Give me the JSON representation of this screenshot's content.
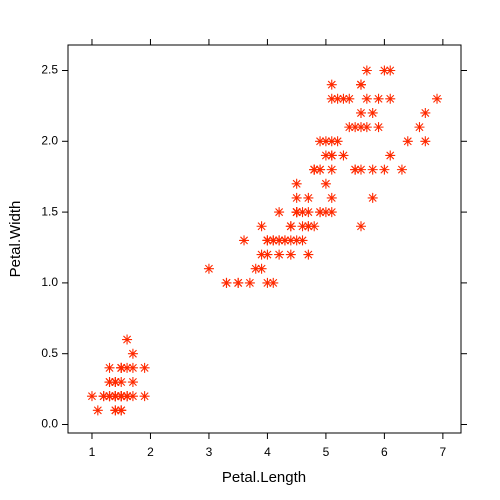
{
  "chart_data": {
    "type": "scatter",
    "xlabel": "Petal.Length",
    "ylabel": "Petal.Width",
    "marker": "asterisk",
    "color": "#ff2a00",
    "xlim": [
      0.59,
      7.31
    ],
    "ylim": [
      -0.06,
      2.68
    ],
    "xticks": [
      1,
      2,
      3,
      4,
      5,
      6,
      7
    ],
    "yticks": [
      {
        "value": 0,
        "label": "0.0"
      },
      {
        "value": 0.5,
        "label": "0.5"
      },
      {
        "value": 1,
        "label": "1.0"
      },
      {
        "value": 1.5,
        "label": "1.5"
      },
      {
        "value": 2,
        "label": "2.0"
      },
      {
        "value": 2.5,
        "label": "2.5"
      }
    ],
    "x": [
      1.4,
      1.4,
      1.3,
      1.5,
      1.4,
      1.7,
      1.4,
      1.5,
      1.4,
      1.5,
      1.5,
      1.6,
      1.4,
      1.1,
      1.2,
      1.5,
      1.3,
      1.4,
      1.7,
      1.5,
      1.7,
      1.5,
      1.0,
      1.7,
      1.9,
      1.6,
      1.6,
      1.5,
      1.4,
      1.6,
      1.6,
      1.5,
      1.5,
      1.4,
      1.5,
      1.2,
      1.3,
      1.4,
      1.3,
      1.5,
      1.3,
      1.3,
      1.3,
      1.6,
      1.9,
      1.4,
      1.6,
      1.4,
      1.5,
      1.4,
      4.7,
      4.5,
      4.9,
      4.0,
      4.6,
      4.5,
      4.7,
      3.3,
      4.6,
      3.9,
      3.5,
      4.2,
      4.0,
      4.7,
      3.6,
      4.4,
      4.5,
      4.1,
      4.5,
      3.9,
      4.8,
      4.0,
      4.9,
      4.7,
      4.3,
      4.4,
      4.8,
      5.0,
      4.5,
      3.5,
      3.8,
      3.7,
      3.9,
      5.1,
      4.5,
      4.5,
      4.7,
      4.4,
      4.1,
      4.0,
      4.4,
      4.6,
      4.0,
      3.3,
      4.2,
      4.2,
      4.2,
      4.3,
      3.0,
      4.1,
      6.0,
      5.1,
      5.9,
      5.6,
      5.8,
      6.6,
      4.5,
      6.3,
      5.8,
      6.1,
      5.1,
      5.3,
      5.5,
      5.0,
      5.1,
      5.3,
      5.5,
      6.7,
      6.9,
      5.0,
      5.7,
      4.9,
      6.7,
      4.9,
      5.7,
      6.0,
      4.8,
      4.9,
      5.6,
      5.8,
      6.1,
      6.4,
      5.6,
      5.1,
      5.6,
      6.1,
      5.6,
      5.5,
      4.8,
      5.4,
      5.6,
      5.1,
      5.1,
      5.9,
      5.7,
      5.2,
      5.0,
      5.2,
      5.4,
      5.1
    ],
    "values": [
      0.2,
      0.2,
      0.2,
      0.2,
      0.2,
      0.4,
      0.3,
      0.2,
      0.2,
      0.1,
      0.2,
      0.2,
      0.1,
      0.1,
      0.2,
      0.4,
      0.4,
      0.3,
      0.3,
      0.3,
      0.2,
      0.4,
      0.2,
      0.5,
      0.2,
      0.2,
      0.4,
      0.2,
      0.2,
      0.2,
      0.2,
      0.4,
      0.1,
      0.2,
      0.2,
      0.2,
      0.2,
      0.1,
      0.2,
      0.2,
      0.3,
      0.3,
      0.2,
      0.6,
      0.4,
      0.3,
      0.2,
      0.2,
      0.2,
      0.2,
      1.4,
      1.5,
      1.5,
      1.3,
      1.5,
      1.3,
      1.6,
      1.0,
      1.3,
      1.4,
      1.0,
      1.5,
      1.0,
      1.4,
      1.3,
      1.4,
      1.5,
      1.0,
      1.5,
      1.1,
      1.8,
      1.3,
      1.5,
      1.2,
      1.3,
      1.4,
      1.4,
      1.7,
      1.5,
      1.0,
      1.1,
      1.0,
      1.2,
      1.6,
      1.5,
      1.6,
      1.5,
      1.3,
      1.3,
      1.3,
      1.2,
      1.4,
      1.2,
      1.0,
      1.3,
      1.2,
      1.3,
      1.3,
      1.1,
      1.3,
      2.5,
      1.9,
      2.1,
      1.8,
      2.2,
      2.1,
      1.7,
      1.8,
      1.8,
      2.5,
      2.0,
      1.9,
      2.1,
      2.0,
      2.4,
      2.3,
      1.8,
      2.2,
      2.3,
      1.5,
      2.3,
      2.0,
      2.0,
      1.8,
      2.1,
      1.8,
      1.8,
      1.8,
      2.1,
      1.6,
      1.9,
      2.0,
      2.2,
      1.5,
      1.4,
      2.3,
      2.4,
      1.8,
      1.8,
      2.1,
      2.4,
      2.3,
      1.9,
      2.3,
      2.5,
      2.3,
      1.9,
      2.0,
      2.3,
      1.8
    ]
  }
}
